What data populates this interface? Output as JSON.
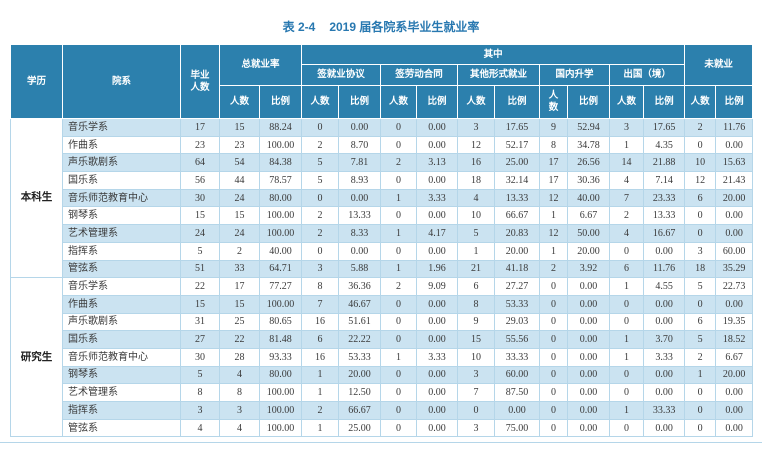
{
  "caption": {
    "label": "表 2-4",
    "title": "2019 届各院系毕业生就业率"
  },
  "colors": {
    "header_bg": "#2c80ad",
    "stripe": "#cbe3f1",
    "border": "#b5d6e9",
    "title_text": "#2878b0"
  },
  "table": {
    "header": {
      "edu": "学历",
      "dept": "院系",
      "graduates": "毕业\n人数",
      "total_rate": "总就业率",
      "among": "其中",
      "unemployed": "未就业",
      "count": "人数",
      "count_wrapped": "人\n数",
      "ratio": "比例",
      "groups": [
        "签就业协议",
        "签劳动合同",
        "其他形式就业",
        "国内升学",
        "出国（境）"
      ]
    },
    "groups": [
      {
        "label": "本科生",
        "rows": [
          {
            "dept": "音乐学系",
            "values": [
              "17",
              "15",
              "88.24",
              "0",
              "0.00",
              "0",
              "0.00",
              "3",
              "17.65",
              "9",
              "52.94",
              "3",
              "17.65",
              "2",
              "11.76"
            ]
          },
          {
            "dept": "作曲系",
            "values": [
              "23",
              "23",
              "100.00",
              "2",
              "8.70",
              "0",
              "0.00",
              "12",
              "52.17",
              "8",
              "34.78",
              "1",
              "4.35",
              "0",
              "0.00"
            ]
          },
          {
            "dept": "声乐歌剧系",
            "values": [
              "64",
              "54",
              "84.38",
              "5",
              "7.81",
              "2",
              "3.13",
              "16",
              "25.00",
              "17",
              "26.56",
              "14",
              "21.88",
              "10",
              "15.63"
            ]
          },
          {
            "dept": "国乐系",
            "values": [
              "56",
              "44",
              "78.57",
              "5",
              "8.93",
              "0",
              "0.00",
              "18",
              "32.14",
              "17",
              "30.36",
              "4",
              "7.14",
              "12",
              "21.43"
            ]
          },
          {
            "dept": "音乐师范教育中心",
            "values": [
              "30",
              "24",
              "80.00",
              "0",
              "0.00",
              "1",
              "3.33",
              "4",
              "13.33",
              "12",
              "40.00",
              "7",
              "23.33",
              "6",
              "20.00"
            ]
          },
          {
            "dept": "钢琴系",
            "values": [
              "15",
              "15",
              "100.00",
              "2",
              "13.33",
              "0",
              "0.00",
              "10",
              "66.67",
              "1",
              "6.67",
              "2",
              "13.33",
              "0",
              "0.00"
            ]
          },
          {
            "dept": "艺术管理系",
            "values": [
              "24",
              "24",
              "100.00",
              "2",
              "8.33",
              "1",
              "4.17",
              "5",
              "20.83",
              "12",
              "50.00",
              "4",
              "16.67",
              "0",
              "0.00"
            ]
          },
          {
            "dept": "指挥系",
            "values": [
              "5",
              "2",
              "40.00",
              "0",
              "0.00",
              "0",
              "0.00",
              "1",
              "20.00",
              "1",
              "20.00",
              "0",
              "0.00",
              "3",
              "60.00"
            ]
          },
          {
            "dept": "管弦系",
            "values": [
              "51",
              "33",
              "64.71",
              "3",
              "5.88",
              "1",
              "1.96",
              "21",
              "41.18",
              "2",
              "3.92",
              "6",
              "11.76",
              "18",
              "35.29"
            ]
          }
        ]
      },
      {
        "label": "研究生",
        "rows": [
          {
            "dept": "音乐学系",
            "values": [
              "22",
              "17",
              "77.27",
              "8",
              "36.36",
              "2",
              "9.09",
              "6",
              "27.27",
              "0",
              "0.00",
              "1",
              "4.55",
              "5",
              "22.73"
            ]
          },
          {
            "dept": "作曲系",
            "values": [
              "15",
              "15",
              "100.00",
              "7",
              "46.67",
              "0",
              "0.00",
              "8",
              "53.33",
              "0",
              "0.00",
              "0",
              "0.00",
              "0",
              "0.00"
            ]
          },
          {
            "dept": "声乐歌剧系",
            "values": [
              "31",
              "25",
              "80.65",
              "16",
              "51.61",
              "0",
              "0.00",
              "9",
              "29.03",
              "0",
              "0.00",
              "0",
              "0.00",
              "6",
              "19.35"
            ]
          },
          {
            "dept": "国乐系",
            "values": [
              "27",
              "22",
              "81.48",
              "6",
              "22.22",
              "0",
              "0.00",
              "15",
              "55.56",
              "0",
              "0.00",
              "1",
              "3.70",
              "5",
              "18.52"
            ]
          },
          {
            "dept": "音乐师范教育中心",
            "values": [
              "30",
              "28",
              "93.33",
              "16",
              "53.33",
              "1",
              "3.33",
              "10",
              "33.33",
              "0",
              "0.00",
              "1",
              "3.33",
              "2",
              "6.67"
            ]
          },
          {
            "dept": "钢琴系",
            "values": [
              "5",
              "4",
              "80.00",
              "1",
              "20.00",
              "0",
              "0.00",
              "3",
              "60.00",
              "0",
              "0.00",
              "0",
              "0.00",
              "1",
              "20.00"
            ]
          },
          {
            "dept": "艺术管理系",
            "values": [
              "8",
              "8",
              "100.00",
              "1",
              "12.50",
              "0",
              "0.00",
              "7",
              "87.50",
              "0",
              "0.00",
              "0",
              "0.00",
              "0",
              "0.00"
            ]
          },
          {
            "dept": "指挥系",
            "values": [
              "3",
              "3",
              "100.00",
              "2",
              "66.67",
              "0",
              "0.00",
              "0",
              "0.00",
              "0",
              "0.00",
              "1",
              "33.33",
              "0",
              "0.00"
            ]
          },
          {
            "dept": "管弦系",
            "values": [
              "4",
              "4",
              "100.00",
              "1",
              "25.00",
              "0",
              "0.00",
              "3",
              "75.00",
              "0",
              "0.00",
              "0",
              "0.00",
              "0",
              "0.00"
            ]
          }
        ]
      }
    ]
  }
}
